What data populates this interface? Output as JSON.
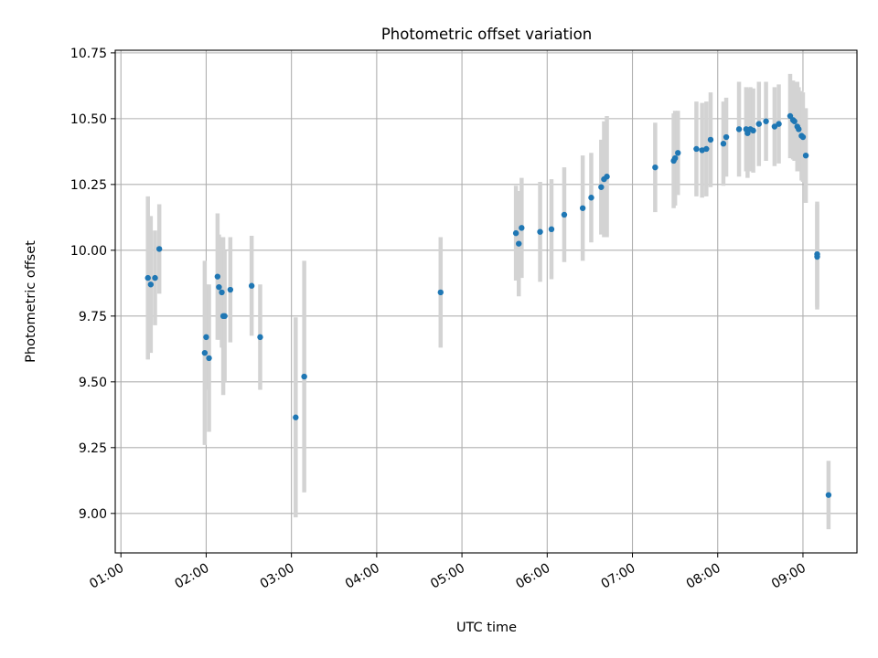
{
  "chart_data": {
    "type": "scatter",
    "title": "Photometric offset variation",
    "xlabel": "UTC time",
    "ylabel": "Photometric offset",
    "x_unit": "UTC time (hh:mm)",
    "xlim": [
      "00:56",
      "09:38"
    ],
    "ylim": [
      8.85,
      10.76
    ],
    "x_ticks": [
      "01:00",
      "02:00",
      "03:00",
      "04:00",
      "05:00",
      "06:00",
      "07:00",
      "08:00",
      "09:00"
    ],
    "y_ticks": [
      "9.00",
      "9.25",
      "9.50",
      "9.75",
      "10.00",
      "10.25",
      "10.50",
      "10.75"
    ],
    "grid": true,
    "colors": {
      "point": "#1f77b4",
      "errorbar": "#d3d3d3",
      "grid": "#b0b0b0",
      "axes": "#000000"
    },
    "series": [
      {
        "points": [
          {
            "x": "01:19",
            "y": 9.895,
            "err": 0.31
          },
          {
            "x": "01:21",
            "y": 9.87,
            "err": 0.26
          },
          {
            "x": "01:24",
            "y": 9.895,
            "err": 0.18
          },
          {
            "x": "01:27",
            "y": 10.005,
            "err": 0.17
          },
          {
            "x": "01:59",
            "y": 9.61,
            "err": 0.35
          },
          {
            "x": "02:00",
            "y": 9.67,
            "err": 0.2
          },
          {
            "x": "02:02",
            "y": 9.59,
            "err": 0.28
          },
          {
            "x": "02:08",
            "y": 9.9,
            "err": 0.24
          },
          {
            "x": "02:09",
            "y": 9.86,
            "err": 0.2
          },
          {
            "x": "02:11",
            "y": 9.84,
            "err": 0.21
          },
          {
            "x": "02:12",
            "y": 9.75,
            "err": 0.3
          },
          {
            "x": "02:13",
            "y": 9.75,
            "err": 0.25
          },
          {
            "x": "02:17",
            "y": 9.85,
            "err": 0.2
          },
          {
            "x": "02:32",
            "y": 9.865,
            "err": 0.19
          },
          {
            "x": "02:38",
            "y": 9.67,
            "err": 0.2
          },
          {
            "x": "03:03",
            "y": 9.365,
            "err": 0.38
          },
          {
            "x": "03:09",
            "y": 9.52,
            "err": 0.44
          },
          {
            "x": "04:45",
            "y": 9.84,
            "err": 0.21
          },
          {
            "x": "05:38",
            "y": 10.065,
            "err": 0.18
          },
          {
            "x": "05:40",
            "y": 10.025,
            "err": 0.2
          },
          {
            "x": "05:42",
            "y": 10.085,
            "err": 0.19
          },
          {
            "x": "05:55",
            "y": 10.07,
            "err": 0.19
          },
          {
            "x": "06:03",
            "y": 10.08,
            "err": 0.19
          },
          {
            "x": "06:12",
            "y": 10.135,
            "err": 0.18
          },
          {
            "x": "06:25",
            "y": 10.16,
            "err": 0.2
          },
          {
            "x": "06:31",
            "y": 10.2,
            "err": 0.17
          },
          {
            "x": "06:38",
            "y": 10.24,
            "err": 0.18
          },
          {
            "x": "06:40",
            "y": 10.27,
            "err": 0.22
          },
          {
            "x": "06:42",
            "y": 10.28,
            "err": 0.23
          },
          {
            "x": "07:16",
            "y": 10.315,
            "err": 0.17
          },
          {
            "x": "07:29",
            "y": 10.34,
            "err": 0.18
          },
          {
            "x": "07:30",
            "y": 10.35,
            "err": 0.18
          },
          {
            "x": "07:32",
            "y": 10.37,
            "err": 0.16
          },
          {
            "x": "07:45",
            "y": 10.385,
            "err": 0.18
          },
          {
            "x": "07:49",
            "y": 10.38,
            "err": 0.18
          },
          {
            "x": "07:52",
            "y": 10.385,
            "err": 0.18
          },
          {
            "x": "07:55",
            "y": 10.42,
            "err": 0.18
          },
          {
            "x": "08:04",
            "y": 10.405,
            "err": 0.16
          },
          {
            "x": "08:06",
            "y": 10.43,
            "err": 0.15
          },
          {
            "x": "08:15",
            "y": 10.46,
            "err": 0.18
          },
          {
            "x": "08:20",
            "y": 10.46,
            "err": 0.16
          },
          {
            "x": "08:21",
            "y": 10.445,
            "err": 0.17
          },
          {
            "x": "08:23",
            "y": 10.46,
            "err": 0.16
          },
          {
            "x": "08:25",
            "y": 10.455,
            "err": 0.16
          },
          {
            "x": "08:29",
            "y": 10.48,
            "err": 0.16
          },
          {
            "x": "08:34",
            "y": 10.49,
            "err": 0.15
          },
          {
            "x": "08:40",
            "y": 10.47,
            "err": 0.15
          },
          {
            "x": "08:43",
            "y": 10.48,
            "err": 0.15
          },
          {
            "x": "08:51",
            "y": 10.51,
            "err": 0.16
          },
          {
            "x": "08:53",
            "y": 10.495,
            "err": 0.15
          },
          {
            "x": "08:54",
            "y": 10.49,
            "err": 0.15
          },
          {
            "x": "08:56",
            "y": 10.47,
            "err": 0.17
          },
          {
            "x": "08:57",
            "y": 10.46,
            "err": 0.16
          },
          {
            "x": "08:59",
            "y": 10.435,
            "err": 0.17
          },
          {
            "x": "09:00",
            "y": 10.43,
            "err": 0.17
          },
          {
            "x": "09:02",
            "y": 10.36,
            "err": 0.18
          },
          {
            "x": "09:10",
            "y": 9.985,
            "err": 0.2
          },
          {
            "x": "09:10",
            "y": 9.975,
            "err": 0.2
          },
          {
            "x": "09:18",
            "y": 9.07,
            "err": 0.13
          }
        ]
      }
    ]
  }
}
